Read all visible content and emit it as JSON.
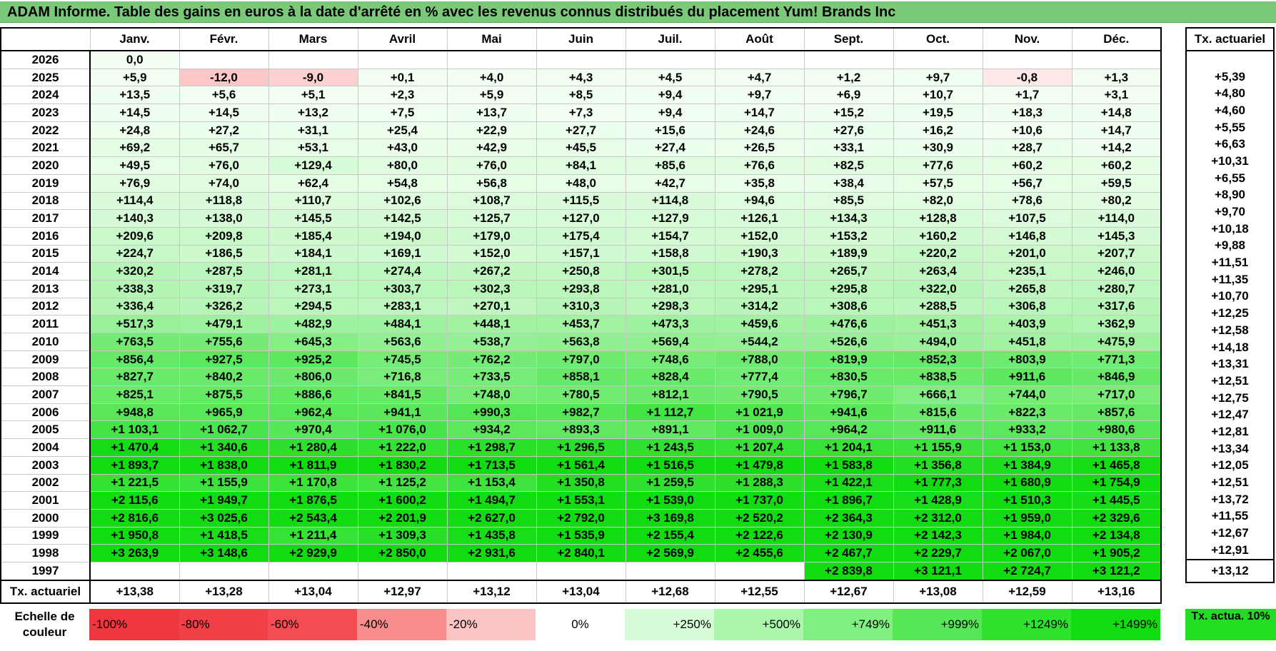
{
  "title": "ADAM Informe. Table des gains en euros à la date d'arrêté en % avec les revenus connus distribués du placement Yum! Brands Inc",
  "months": [
    "Janv.",
    "Févr.",
    "Mars",
    "Avril",
    "Mai",
    "Juin",
    "Juil.",
    "Août",
    "Sept.",
    "Oct.",
    "Nov.",
    "Déc."
  ],
  "actuarial_header": "Tx. actuariel",
  "rows": [
    {
      "year": "2026",
      "values": [
        "0,0",
        "",
        "",
        "",
        "",
        "",
        "",
        "",
        "",
        "",
        "",
        ""
      ],
      "rate": ""
    },
    {
      "year": "2025",
      "values": [
        "+5,9",
        "-12,0",
        "-9,0",
        "+0,1",
        "+4,0",
        "+4,3",
        "+4,5",
        "+4,7",
        "+1,2",
        "+9,7",
        "-0,8",
        "+1,3"
      ],
      "rate": "+5,39"
    },
    {
      "year": "2024",
      "values": [
        "+13,5",
        "+5,6",
        "+5,1",
        "+2,3",
        "+5,9",
        "+8,5",
        "+9,4",
        "+9,7",
        "+6,9",
        "+10,7",
        "+1,7",
        "+3,1"
      ],
      "rate": "+4,80"
    },
    {
      "year": "2023",
      "values": [
        "+14,5",
        "+14,5",
        "+13,2",
        "+7,5",
        "+13,7",
        "+7,3",
        "+9,4",
        "+14,7",
        "+15,2",
        "+19,5",
        "+18,3",
        "+14,8"
      ],
      "rate": "+4,60"
    },
    {
      "year": "2022",
      "values": [
        "+24,8",
        "+27,2",
        "+31,1",
        "+25,4",
        "+22,9",
        "+27,7",
        "+15,6",
        "+24,6",
        "+27,6",
        "+16,2",
        "+10,6",
        "+14,7"
      ],
      "rate": "+5,55"
    },
    {
      "year": "2021",
      "values": [
        "+69,2",
        "+65,7",
        "+53,1",
        "+43,0",
        "+42,9",
        "+45,5",
        "+27,4",
        "+26,5",
        "+33,1",
        "+30,9",
        "+28,7",
        "+14,2"
      ],
      "rate": "+6,63"
    },
    {
      "year": "2020",
      "values": [
        "+49,5",
        "+76,0",
        "+129,4",
        "+80,0",
        "+76,0",
        "+84,1",
        "+85,6",
        "+76,6",
        "+82,5",
        "+77,6",
        "+60,2",
        "+60,2"
      ],
      "rate": "+10,31"
    },
    {
      "year": "2019",
      "values": [
        "+76,9",
        "+74,0",
        "+62,4",
        "+54,8",
        "+56,8",
        "+48,0",
        "+42,7",
        "+35,8",
        "+38,4",
        "+57,5",
        "+56,7",
        "+59,5"
      ],
      "rate": "+6,55"
    },
    {
      "year": "2018",
      "values": [
        "+114,4",
        "+118,8",
        "+110,7",
        "+102,6",
        "+108,7",
        "+115,5",
        "+114,8",
        "+94,6",
        "+85,5",
        "+82,0",
        "+78,6",
        "+80,2"
      ],
      "rate": "+8,90"
    },
    {
      "year": "2017",
      "values": [
        "+140,3",
        "+138,0",
        "+145,5",
        "+142,5",
        "+125,7",
        "+127,0",
        "+127,9",
        "+126,1",
        "+134,3",
        "+128,8",
        "+107,5",
        "+114,0"
      ],
      "rate": "+9,70"
    },
    {
      "year": "2016",
      "values": [
        "+209,6",
        "+209,8",
        "+185,4",
        "+194,0",
        "+179,0",
        "+175,4",
        "+154,7",
        "+152,0",
        "+153,2",
        "+160,2",
        "+146,8",
        "+145,3"
      ],
      "rate": "+10,18"
    },
    {
      "year": "2015",
      "values": [
        "+224,7",
        "+186,5",
        "+184,1",
        "+169,1",
        "+152,0",
        "+157,1",
        "+158,8",
        "+190,3",
        "+189,9",
        "+220,2",
        "+201,0",
        "+207,7"
      ],
      "rate": "+9,88"
    },
    {
      "year": "2014",
      "values": [
        "+320,2",
        "+287,5",
        "+281,1",
        "+274,4",
        "+267,2",
        "+250,8",
        "+301,5",
        "+278,2",
        "+265,7",
        "+263,4",
        "+235,1",
        "+246,0"
      ],
      "rate": "+11,51"
    },
    {
      "year": "2013",
      "values": [
        "+338,3",
        "+319,7",
        "+273,1",
        "+303,7",
        "+302,3",
        "+293,8",
        "+281,0",
        "+295,1",
        "+295,8",
        "+322,0",
        "+265,8",
        "+280,7"
      ],
      "rate": "+11,35"
    },
    {
      "year": "2012",
      "values": [
        "+336,4",
        "+326,2",
        "+294,5",
        "+283,1",
        "+270,1",
        "+310,3",
        "+298,3",
        "+314,2",
        "+308,6",
        "+288,5",
        "+306,8",
        "+317,6"
      ],
      "rate": "+10,70"
    },
    {
      "year": "2011",
      "values": [
        "+517,3",
        "+479,1",
        "+482,9",
        "+484,1",
        "+448,1",
        "+453,7",
        "+473,3",
        "+459,6",
        "+476,6",
        "+451,3",
        "+403,9",
        "+362,9"
      ],
      "rate": "+12,25"
    },
    {
      "year": "2010",
      "values": [
        "+763,5",
        "+755,6",
        "+645,3",
        "+563,6",
        "+538,7",
        "+563,8",
        "+569,4",
        "+544,2",
        "+526,6",
        "+494,0",
        "+451,8",
        "+475,9"
      ],
      "rate": "+12,58"
    },
    {
      "year": "2009",
      "values": [
        "+856,4",
        "+927,5",
        "+925,2",
        "+745,5",
        "+762,2",
        "+797,0",
        "+748,6",
        "+788,0",
        "+819,9",
        "+852,3",
        "+803,9",
        "+771,3"
      ],
      "rate": "+14,18"
    },
    {
      "year": "2008",
      "values": [
        "+827,7",
        "+840,2",
        "+806,0",
        "+716,8",
        "+733,5",
        "+858,1",
        "+828,4",
        "+777,4",
        "+830,5",
        "+838,5",
        "+911,6",
        "+846,9"
      ],
      "rate": "+13,31"
    },
    {
      "year": "2007",
      "values": [
        "+825,1",
        "+875,5",
        "+886,6",
        "+841,5",
        "+748,0",
        "+780,5",
        "+812,1",
        "+790,5",
        "+796,7",
        "+666,1",
        "+744,0",
        "+717,0"
      ],
      "rate": "+12,51"
    },
    {
      "year": "2006",
      "values": [
        "+948,8",
        "+965,9",
        "+962,4",
        "+941,1",
        "+990,3",
        "+982,7",
        "+1 112,7",
        "+1 021,9",
        "+941,6",
        "+815,6",
        "+822,3",
        "+857,6"
      ],
      "rate": "+12,75"
    },
    {
      "year": "2005",
      "values": [
        "+1 103,1",
        "+1 062,7",
        "+970,4",
        "+1 076,0",
        "+934,2",
        "+893,3",
        "+891,1",
        "+1 009,0",
        "+964,2",
        "+911,6",
        "+933,2",
        "+980,6"
      ],
      "rate": "+12,47"
    },
    {
      "year": "2004",
      "values": [
        "+1 470,4",
        "+1 340,6",
        "+1 280,4",
        "+1 222,0",
        "+1 298,7",
        "+1 296,5",
        "+1 243,5",
        "+1 207,4",
        "+1 204,1",
        "+1 155,9",
        "+1 153,0",
        "+1 133,8"
      ],
      "rate": "+12,81"
    },
    {
      "year": "2003",
      "values": [
        "+1 893,7",
        "+1 838,0",
        "+1 811,9",
        "+1 830,2",
        "+1 713,5",
        "+1 561,4",
        "+1 516,5",
        "+1 479,8",
        "+1 583,8",
        "+1 356,8",
        "+1 384,9",
        "+1 465,8"
      ],
      "rate": "+13,34"
    },
    {
      "year": "2002",
      "values": [
        "+1 221,5",
        "+1 155,9",
        "+1 170,8",
        "+1 125,2",
        "+1 153,4",
        "+1 350,8",
        "+1 259,5",
        "+1 288,3",
        "+1 422,1",
        "+1 777,3",
        "+1 680,9",
        "+1 754,9"
      ],
      "rate": "+12,05"
    },
    {
      "year": "2001",
      "values": [
        "+2 115,6",
        "+1 949,7",
        "+1 876,5",
        "+1 600,2",
        "+1 494,7",
        "+1 553,1",
        "+1 539,0",
        "+1 737,0",
        "+1 896,7",
        "+1 428,9",
        "+1 510,3",
        "+1 445,5"
      ],
      "rate": "+12,51"
    },
    {
      "year": "2000",
      "values": [
        "+2 816,6",
        "+3 025,6",
        "+2 543,4",
        "+2 201,9",
        "+2 627,0",
        "+2 792,0",
        "+3 169,8",
        "+2 520,2",
        "+2 364,3",
        "+2 312,0",
        "+1 959,0",
        "+2 329,6"
      ],
      "rate": "+13,72"
    },
    {
      "year": "1999",
      "values": [
        "+1 950,8",
        "+1 418,5",
        "+1 211,4",
        "+1 309,3",
        "+1 435,8",
        "+1 535,9",
        "+2 155,4",
        "+2 122,6",
        "+2 130,9",
        "+2 142,3",
        "+1 984,0",
        "+2 134,8"
      ],
      "rate": "+11,55"
    },
    {
      "year": "1998",
      "values": [
        "+3 263,9",
        "+3 148,6",
        "+2 929,9",
        "+2 850,0",
        "+2 931,6",
        "+2 840,1",
        "+2 569,9",
        "+2 455,6",
        "+2 467,7",
        "+2 229,7",
        "+2 067,0",
        "+1 905,2"
      ],
      "rate": "+12,67"
    },
    {
      "year": "1997",
      "values": [
        "",
        "",
        "",
        "",
        "",
        "",
        "",
        "",
        "+2 839,8",
        "+3 121,1",
        "+2 724,7",
        "+3 121,2"
      ],
      "rate": "+12,91"
    }
  ],
  "footer": {
    "label": "Tx. actuariel",
    "values": [
      "+13,38",
      "+13,28",
      "+13,04",
      "+12,97",
      "+13,12",
      "+13,04",
      "+12,68",
      "+12,55",
      "+12,67",
      "+13,08",
      "+12,59",
      "+13,16"
    ],
    "rate": "+13,12"
  },
  "legend": {
    "label": "Echelle de couleur",
    "items": [
      {
        "text": "-100%",
        "color": "#f0363e"
      },
      {
        "text": "-80%",
        "color": "#f24048"
      },
      {
        "text": "-60%",
        "color": "#f44c52"
      },
      {
        "text": "-40%",
        "color": "#f78c8c"
      },
      {
        "text": "-20%",
        "color": "#fbc4c4"
      },
      {
        "text": "0%",
        "color": "#ffffff"
      },
      {
        "text": "+250%",
        "color": "#d7fcd7"
      },
      {
        "text": "+500%",
        "color": "#aaf6aa"
      },
      {
        "text": "+749%",
        "color": "#80f080"
      },
      {
        "text": "+999%",
        "color": "#55e755"
      },
      {
        "text": "+1249%",
        "color": "#2ee22e"
      },
      {
        "text": "+1499%",
        "color": "#10dc10"
      }
    ],
    "actua": "Tx. actua. 10%",
    "actua_color": "#22dd22"
  }
}
